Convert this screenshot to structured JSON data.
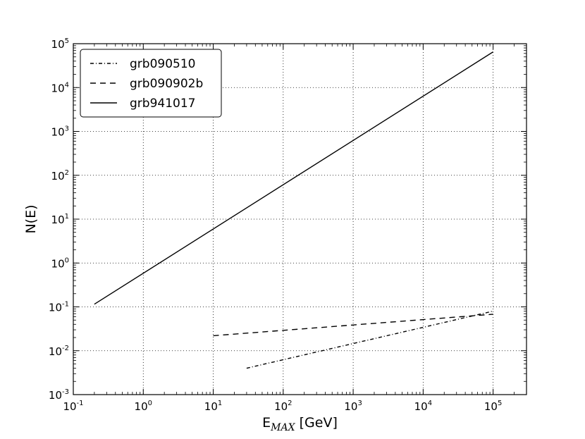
{
  "chart_data": {
    "type": "line",
    "title": "",
    "xlabel": {
      "main": "E",
      "sub": "MAX",
      "unit": " [GeV]"
    },
    "ylabel": "N(E)",
    "xscale": "log",
    "yscale": "log",
    "xlim": [
      0.1,
      300000
    ],
    "ylim": [
      0.001,
      100000
    ],
    "grid": true,
    "legend_position": "top-left",
    "x_ticks": [
      {
        "value": 0.1,
        "base": "10",
        "exp": "-1"
      },
      {
        "value": 1,
        "base": "10",
        "exp": "0"
      },
      {
        "value": 10,
        "base": "10",
        "exp": "1"
      },
      {
        "value": 100,
        "base": "10",
        "exp": "2"
      },
      {
        "value": 1000,
        "base": "10",
        "exp": "3"
      },
      {
        "value": 10000,
        "base": "10",
        "exp": "4"
      },
      {
        "value": 100000,
        "base": "10",
        "exp": "5"
      }
    ],
    "y_ticks": [
      {
        "value": 0.001,
        "base": "10",
        "exp": "-3"
      },
      {
        "value": 0.01,
        "base": "10",
        "exp": "-2"
      },
      {
        "value": 0.1,
        "base": "10",
        "exp": "-1"
      },
      {
        "value": 1,
        "base": "10",
        "exp": "0"
      },
      {
        "value": 10,
        "base": "10",
        "exp": "1"
      },
      {
        "value": 100,
        "base": "10",
        "exp": "2"
      },
      {
        "value": 1000,
        "base": "10",
        "exp": "3"
      },
      {
        "value": 10000,
        "base": "10",
        "exp": "4"
      },
      {
        "value": 100000,
        "base": "10",
        "exp": "5"
      }
    ],
    "series": [
      {
        "name": "grb090510",
        "style": "dashdot",
        "color": "#000000",
        "x": [
          30,
          100000
        ],
        "y": [
          0.004,
          0.08
        ]
      },
      {
        "name": "grb090902b",
        "style": "dashed",
        "color": "#000000",
        "x": [
          10,
          100000
        ],
        "y": [
          0.022,
          0.068
        ]
      },
      {
        "name": "grb941017",
        "style": "solid",
        "color": "#000000",
        "x": [
          0.2,
          100000
        ],
        "y": [
          0.115,
          65000
        ]
      }
    ]
  }
}
